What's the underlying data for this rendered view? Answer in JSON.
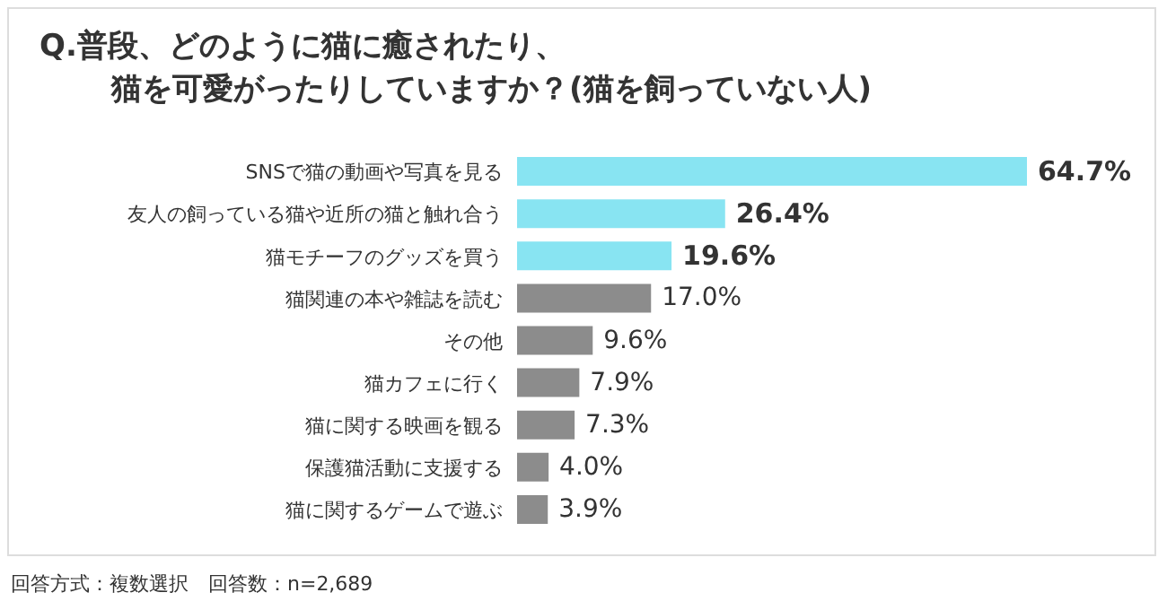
{
  "chart_data": {
    "type": "bar",
    "orientation": "horizontal",
    "title": "Q.普段、どのように猫に癒されたり、",
    "subtitle": "猫を可愛がったりしていますか？(猫を飼っていない人)",
    "categories": [
      "SNSで猫の動画や写真を見る",
      "友人の飼っている猫や近所の猫と触れ合う",
      "猫モチーフのグッズを買う",
      "猫関連の本や雑誌を読む",
      "その他",
      "猫カフェに行く",
      "猫に関する映画を観る",
      "保護猫活動に支援する",
      "猫に関するゲームで遊ぶ"
    ],
    "values": [
      64.7,
      26.4,
      19.6,
      17.0,
      9.6,
      7.9,
      7.3,
      4.0,
      3.9
    ],
    "value_labels": [
      "64.7%",
      "26.4%",
      "19.6%",
      "17.0%",
      "9.6%",
      "7.9%",
      "7.3%",
      "4.0%",
      "3.9%"
    ],
    "colors": [
      "#88e4f2",
      "#88e4f2",
      "#88e4f2",
      "#8c8c8c",
      "#8c8c8c",
      "#8c8c8c",
      "#8c8c8c",
      "#8c8c8c",
      "#8c8c8c"
    ],
    "annotations": [
      "回答方式：複数選択　回答数：n=2,689"
    ]
  }
}
